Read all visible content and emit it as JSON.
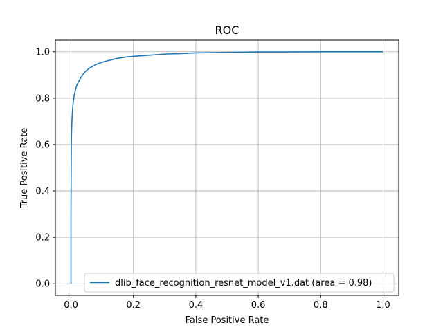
{
  "chart_data": {
    "type": "line",
    "title": "ROC",
    "xlabel": "False Positive Rate",
    "ylabel": "True Positive Rate",
    "xlim": [
      -0.05,
      1.05
    ],
    "ylim": [
      -0.05,
      1.05
    ],
    "xticks": [
      0.0,
      0.2,
      0.4,
      0.6,
      0.8,
      1.0
    ],
    "yticks": [
      0.0,
      0.2,
      0.4,
      0.6,
      0.8,
      1.0
    ],
    "xtick_labels": [
      "0.0",
      "0.2",
      "0.4",
      "0.6",
      "0.8",
      "1.0"
    ],
    "ytick_labels": [
      "0.0",
      "0.2",
      "0.4",
      "0.6",
      "0.8",
      "1.0"
    ],
    "grid": true,
    "legend_position": "lower-right",
    "series": [
      {
        "name": "dlib_face_recognition_resnet_model_v1.dat (area = 0.98)",
        "color": "#1f77b4",
        "x": [
          0.0,
          0.0,
          0.001,
          0.002,
          0.003,
          0.005,
          0.007,
          0.01,
          0.015,
          0.02,
          0.03,
          0.04,
          0.05,
          0.06,
          0.08,
          0.1,
          0.12,
          0.15,
          0.18,
          0.2,
          0.25,
          0.3,
          0.35,
          0.4,
          0.5,
          0.6,
          0.7,
          0.8,
          0.9,
          1.0
        ],
        "y": [
          0.0,
          0.3,
          0.6,
          0.66,
          0.7,
          0.75,
          0.78,
          0.81,
          0.84,
          0.86,
          0.885,
          0.905,
          0.92,
          0.93,
          0.945,
          0.955,
          0.962,
          0.972,
          0.978,
          0.98,
          0.985,
          0.99,
          0.992,
          0.995,
          0.997,
          0.999,
          0.999,
          1.0,
          1.0,
          1.0
        ]
      }
    ]
  }
}
